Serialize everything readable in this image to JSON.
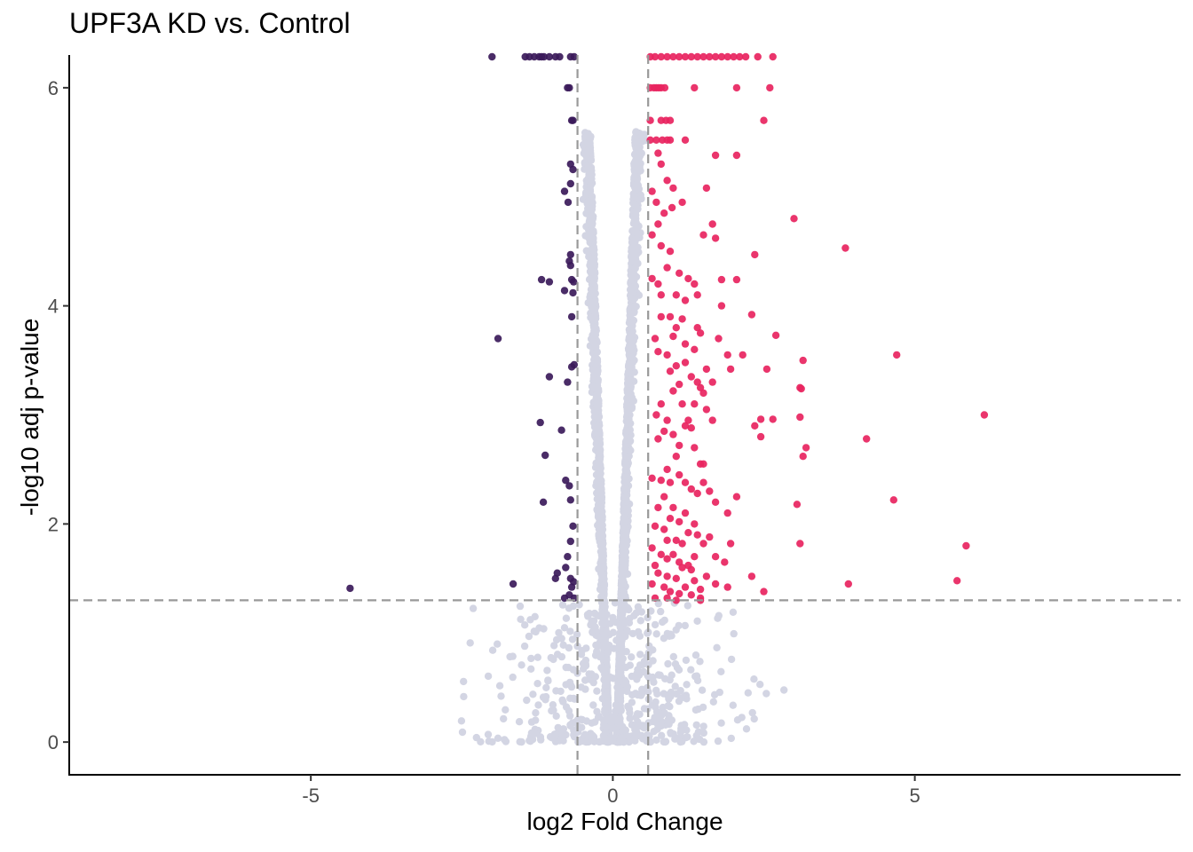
{
  "chart_data": {
    "type": "scatter",
    "title": "UPF3A KD vs. Control",
    "xlabel": "log2 Fold Change",
    "ylabel": "-log10 adj p-value",
    "xlim": [
      -9.0,
      9.4
    ],
    "ylim": [
      -0.3,
      6.3
    ],
    "x_ticks": [
      {
        "value": -5,
        "label": "-5"
      },
      {
        "value": 0,
        "label": "0"
      },
      {
        "value": 5,
        "label": "5"
      }
    ],
    "y_ticks": [
      {
        "value": 0,
        "label": "0"
      },
      {
        "value": 2,
        "label": "2"
      },
      {
        "value": 4,
        "label": "4"
      },
      {
        "value": 6,
        "label": "6"
      }
    ],
    "grid": false,
    "legend": "none",
    "thresholds": {
      "log2fc": [
        -0.585,
        0.585
      ],
      "neg_log10_padj": 1.3
    },
    "colors": {
      "down": "#3b1a5a",
      "up": "#e8245f",
      "not_significant": "#d3d5e3",
      "threshold_line": "#999999"
    },
    "series": [
      {
        "category": "down",
        "points": [
          [
            -2.0,
            6.3
          ],
          [
            -1.45,
            6.3
          ],
          [
            -1.38,
            6.3
          ],
          [
            -1.3,
            6.3
          ],
          [
            -1.22,
            6.3
          ],
          [
            -1.18,
            6.3
          ],
          [
            -1.14,
            6.3
          ],
          [
            -1.05,
            6.3
          ],
          [
            -0.95,
            6.3
          ],
          [
            -0.88,
            6.3
          ],
          [
            -0.7,
            6.3
          ],
          [
            -0.64,
            6.3
          ],
          [
            -0.75,
            6.0
          ],
          [
            -0.72,
            6.0
          ],
          [
            -0.68,
            5.7
          ],
          [
            -0.66,
            5.7
          ],
          [
            -0.7,
            5.3
          ],
          [
            -0.66,
            5.25
          ],
          [
            -0.7,
            5.12
          ],
          [
            -0.8,
            5.05
          ],
          [
            -0.74,
            4.95
          ],
          [
            -0.7,
            4.47
          ],
          [
            -0.72,
            4.41
          ],
          [
            -0.7,
            4.37
          ],
          [
            -1.18,
            4.24
          ],
          [
            -1.05,
            4.22
          ],
          [
            -0.68,
            4.24
          ],
          [
            -0.65,
            4.22
          ],
          [
            -0.8,
            4.14
          ],
          [
            -0.66,
            4.12
          ],
          [
            -0.68,
            3.9
          ],
          [
            -1.9,
            3.7
          ],
          [
            -0.64,
            3.46
          ],
          [
            -0.68,
            3.44
          ],
          [
            -1.05,
            3.35
          ],
          [
            -0.75,
            3.3
          ],
          [
            -1.2,
            2.93
          ],
          [
            -0.85,
            2.86
          ],
          [
            -1.12,
            2.63
          ],
          [
            -0.78,
            2.4
          ],
          [
            -0.72,
            2.35
          ],
          [
            -0.7,
            2.22
          ],
          [
            -1.15,
            2.2
          ],
          [
            -0.66,
            1.98
          ],
          [
            -0.7,
            1.84
          ],
          [
            -0.75,
            1.7
          ],
          [
            -0.78,
            1.6
          ],
          [
            -0.92,
            1.55
          ],
          [
            -0.95,
            1.5
          ],
          [
            -0.7,
            1.5
          ],
          [
            -0.65,
            1.47
          ],
          [
            -0.68,
            1.42
          ],
          [
            -1.65,
            1.45
          ],
          [
            -0.72,
            1.35
          ],
          [
            -0.64,
            1.32
          ],
          [
            -0.8,
            1.32
          ],
          [
            -4.35,
            1.41
          ]
        ]
      },
      {
        "category": "up",
        "points": [
          [
            0.62,
            6.3
          ],
          [
            0.7,
            6.3
          ],
          [
            0.8,
            6.3
          ],
          [
            0.9,
            6.3
          ],
          [
            1.0,
            6.3
          ],
          [
            1.1,
            6.3
          ],
          [
            1.2,
            6.3
          ],
          [
            1.3,
            6.3
          ],
          [
            1.4,
            6.3
          ],
          [
            1.5,
            6.3
          ],
          [
            1.6,
            6.3
          ],
          [
            1.7,
            6.3
          ],
          [
            1.8,
            6.3
          ],
          [
            1.9,
            6.3
          ],
          [
            2.0,
            6.3
          ],
          [
            2.1,
            6.3
          ],
          [
            2.2,
            6.3
          ],
          [
            2.4,
            6.3
          ],
          [
            2.65,
            6.3
          ],
          [
            0.62,
            6.0
          ],
          [
            0.68,
            6.0
          ],
          [
            0.72,
            6.0
          ],
          [
            0.76,
            6.0
          ],
          [
            0.8,
            6.0
          ],
          [
            0.86,
            6.0
          ],
          [
            1.35,
            6.0
          ],
          [
            2.05,
            6.0
          ],
          [
            2.6,
            6.0
          ],
          [
            0.62,
            5.7
          ],
          [
            0.8,
            5.7
          ],
          [
            0.88,
            5.7
          ],
          [
            0.95,
            5.7
          ],
          [
            2.5,
            5.7
          ],
          [
            0.62,
            5.52
          ],
          [
            0.72,
            5.52
          ],
          [
            0.82,
            5.52
          ],
          [
            0.9,
            5.52
          ],
          [
            0.95,
            5.52
          ],
          [
            1.2,
            5.52
          ],
          [
            0.75,
            5.4
          ],
          [
            1.7,
            5.38
          ],
          [
            2.05,
            5.38
          ],
          [
            0.8,
            5.3
          ],
          [
            0.9,
            5.15
          ],
          [
            0.65,
            5.05
          ],
          [
            1.0,
            5.08
          ],
          [
            1.55,
            5.08
          ],
          [
            0.72,
            4.95
          ],
          [
            1.15,
            4.95
          ],
          [
            0.98,
            4.9
          ],
          [
            0.85,
            4.85
          ],
          [
            0.75,
            4.75
          ],
          [
            1.65,
            4.75
          ],
          [
            3.0,
            4.8
          ],
          [
            0.65,
            4.65
          ],
          [
            1.5,
            4.65
          ],
          [
            1.7,
            4.62
          ],
          [
            0.8,
            4.55
          ],
          [
            0.95,
            4.5
          ],
          [
            3.85,
            4.53
          ],
          [
            2.35,
            4.47
          ],
          [
            0.9,
            4.35
          ],
          [
            1.1,
            4.3
          ],
          [
            1.25,
            4.25
          ],
          [
            1.35,
            4.2
          ],
          [
            0.65,
            4.25
          ],
          [
            0.75,
            4.2
          ],
          [
            1.8,
            4.24
          ],
          [
            2.05,
            4.24
          ],
          [
            0.8,
            4.1
          ],
          [
            1.05,
            4.1
          ],
          [
            1.2,
            4.05
          ],
          [
            1.4,
            4.1
          ],
          [
            1.8,
            4.0
          ],
          [
            0.8,
            3.9
          ],
          [
            0.95,
            3.9
          ],
          [
            1.15,
            3.88
          ],
          [
            2.3,
            3.92
          ],
          [
            1.05,
            3.8
          ],
          [
            1.4,
            3.8
          ],
          [
            1.45,
            3.75
          ],
          [
            1.0,
            3.72
          ],
          [
            2.7,
            3.73
          ],
          [
            0.7,
            3.7
          ],
          [
            1.75,
            3.7
          ],
          [
            1.2,
            3.65
          ],
          [
            1.35,
            3.6
          ],
          [
            0.75,
            3.58
          ],
          [
            0.9,
            3.55
          ],
          [
            1.9,
            3.55
          ],
          [
            2.15,
            3.55
          ],
          [
            4.7,
            3.55
          ],
          [
            1.05,
            3.45
          ],
          [
            1.2,
            3.48
          ],
          [
            2.55,
            3.42
          ],
          [
            3.15,
            3.5
          ],
          [
            1.55,
            3.42
          ],
          [
            1.95,
            3.42
          ],
          [
            0.95,
            3.4
          ],
          [
            1.3,
            3.35
          ],
          [
            1.4,
            3.3
          ],
          [
            1.65,
            3.3
          ],
          [
            1.1,
            3.28
          ],
          [
            1.45,
            3.25
          ],
          [
            3.1,
            3.25
          ],
          [
            3.12,
            3.24
          ],
          [
            1.0,
            3.22
          ],
          [
            1.5,
            3.2
          ],
          [
            0.8,
            3.1
          ],
          [
            1.15,
            3.1
          ],
          [
            1.35,
            3.1
          ],
          [
            1.55,
            3.05
          ],
          [
            0.72,
            3.0
          ],
          [
            0.9,
            2.95
          ],
          [
            1.25,
            2.95
          ],
          [
            2.45,
            2.96
          ],
          [
            2.65,
            2.96
          ],
          [
            3.1,
            2.98
          ],
          [
            6.15,
            3.0
          ],
          [
            1.65,
            2.95
          ],
          [
            2.35,
            2.9
          ],
          [
            1.2,
            2.9
          ],
          [
            1.3,
            2.88
          ],
          [
            0.85,
            2.85
          ],
          [
            1.0,
            2.82
          ],
          [
            2.45,
            2.8
          ],
          [
            0.75,
            2.78
          ],
          [
            1.1,
            2.72
          ],
          [
            4.2,
            2.78
          ],
          [
            1.35,
            2.7
          ],
          [
            3.2,
            2.7
          ],
          [
            1.05,
            2.62
          ],
          [
            3.15,
            2.62
          ],
          [
            1.45,
            2.55
          ],
          [
            1.5,
            2.55
          ],
          [
            0.9,
            2.5
          ],
          [
            1.1,
            2.45
          ],
          [
            0.65,
            2.42
          ],
          [
            0.8,
            2.4
          ],
          [
            0.95,
            2.38
          ],
          [
            1.2,
            2.38
          ],
          [
            1.5,
            2.38
          ],
          [
            1.3,
            2.32
          ],
          [
            1.4,
            2.28
          ],
          [
            1.6,
            2.3
          ],
          [
            0.85,
            2.25
          ],
          [
            2.05,
            2.25
          ],
          [
            1.7,
            2.2
          ],
          [
            0.75,
            2.15
          ],
          [
            1.0,
            2.15
          ],
          [
            1.2,
            2.1
          ],
          [
            3.05,
            2.18
          ],
          [
            4.65,
            2.22
          ],
          [
            1.9,
            2.1
          ],
          [
            0.95,
            2.05
          ],
          [
            1.1,
            2.02
          ],
          [
            1.35,
            2.0
          ],
          [
            0.7,
            1.98
          ],
          [
            0.85,
            1.95
          ],
          [
            1.25,
            1.92
          ],
          [
            1.4,
            1.9
          ],
          [
            1.6,
            1.88
          ],
          [
            0.9,
            1.85
          ],
          [
            1.05,
            1.85
          ],
          [
            1.15,
            1.82
          ],
          [
            1.5,
            1.82
          ],
          [
            1.95,
            1.82
          ],
          [
            3.1,
            1.82
          ],
          [
            5.85,
            1.8
          ],
          [
            0.65,
            1.78
          ],
          [
            0.8,
            1.72
          ],
          [
            1.0,
            1.72
          ],
          [
            1.35,
            1.7
          ],
          [
            1.7,
            1.7
          ],
          [
            0.9,
            1.68
          ],
          [
            1.1,
            1.65
          ],
          [
            1.25,
            1.62
          ],
          [
            1.85,
            1.65
          ],
          [
            0.7,
            1.62
          ],
          [
            1.15,
            1.6
          ],
          [
            1.3,
            1.58
          ],
          [
            0.75,
            1.55
          ],
          [
            0.9,
            1.52
          ],
          [
            1.05,
            1.5
          ],
          [
            1.35,
            1.48
          ],
          [
            1.55,
            1.52
          ],
          [
            2.3,
            1.52
          ],
          [
            5.7,
            1.48
          ],
          [
            3.9,
            1.45
          ],
          [
            1.7,
            1.45
          ],
          [
            0.65,
            1.45
          ],
          [
            0.85,
            1.42
          ],
          [
            1.2,
            1.42
          ],
          [
            1.45,
            1.4
          ],
          [
            1.9,
            1.42
          ],
          [
            2.5,
            1.38
          ],
          [
            0.95,
            1.38
          ],
          [
            1.1,
            1.36
          ],
          [
            1.3,
            1.35
          ],
          [
            0.7,
            1.32
          ],
          [
            0.9,
            1.32
          ],
          [
            1.05,
            1.3
          ],
          [
            1.45,
            1.32
          ],
          [
            1.45,
            1.3
          ]
        ]
      }
    ]
  }
}
